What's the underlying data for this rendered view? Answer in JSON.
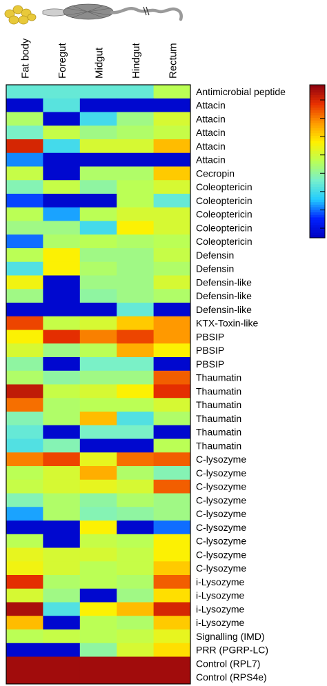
{
  "chart_data": {
    "type": "heatmap",
    "columns": [
      "Fat body",
      "Foregut",
      "Midgut",
      "Hindgut",
      "Rectum"
    ],
    "rows": [
      "Antimicrobial peptide",
      "Attacin",
      "Attacin",
      "Attacin",
      "Attacin",
      "Attacin",
      "Cecropin",
      "Coleoptericin",
      "Coleoptericin",
      "Coleoptericin",
      "Coleoptericin",
      "Coleoptericin",
      "Defensin",
      "Defensin",
      "Defensin-like",
      "Defensin-like",
      "Defensin-like",
      "KTX-Toxin-like",
      "PBSIP",
      "PBSIP",
      "PBSIP",
      "Thaumatin",
      "Thaumatin",
      "Thaumatin",
      "Thaumatin",
      "Thaumatin",
      "Thaumatin",
      "C-lysozyme",
      "C-lysozyme",
      "C-lysozyme",
      "C-lysozyme",
      "C-lysozyme",
      "C-lysozyme",
      "C-lysozyme",
      "C-lysozyme",
      "C-lysozyme",
      "i-Lysozyme",
      "i-Lysozyme",
      "i-Lysozyme",
      "i-Lysozyme",
      "Signalling (IMD)",
      "PRR (PGRP-LC)",
      "Control (RPL7)",
      "Control (RPS4e)"
    ],
    "values": [
      [
        0.35,
        0.35,
        0.35,
        0.35,
        0.5
      ],
      [
        0.03,
        0.33,
        0.03,
        0.03,
        0.03
      ],
      [
        0.48,
        0.03,
        0.3,
        0.45,
        0.55
      ],
      [
        0.38,
        0.52,
        0.45,
        0.48,
        0.52
      ],
      [
        0.9,
        0.3,
        0.55,
        0.55,
        0.7
      ],
      [
        0.2,
        0.03,
        0.03,
        0.03,
        0.03
      ],
      [
        0.52,
        0.03,
        0.48,
        0.48,
        0.68
      ],
      [
        0.4,
        0.52,
        0.42,
        0.5,
        0.55
      ],
      [
        0.15,
        0.03,
        0.03,
        0.5,
        0.35
      ],
      [
        0.5,
        0.22,
        0.5,
        0.55,
        0.55
      ],
      [
        0.45,
        0.45,
        0.3,
        0.62,
        0.55
      ],
      [
        0.18,
        0.48,
        0.5,
        0.48,
        0.5
      ],
      [
        0.5,
        0.62,
        0.45,
        0.45,
        0.52
      ],
      [
        0.32,
        0.62,
        0.48,
        0.45,
        0.48
      ],
      [
        0.6,
        0.03,
        0.45,
        0.45,
        0.55
      ],
      [
        0.45,
        0.03,
        0.42,
        0.45,
        0.48
      ],
      [
        0.03,
        0.03,
        0.03,
        0.35,
        0.03
      ],
      [
        0.85,
        0.52,
        0.55,
        0.68,
        0.75
      ],
      [
        0.62,
        0.88,
        0.78,
        0.85,
        0.75
      ],
      [
        0.55,
        0.45,
        0.5,
        0.72,
        0.62
      ],
      [
        0.42,
        0.03,
        0.38,
        0.38,
        0.03
      ],
      [
        0.48,
        0.42,
        0.45,
        0.45,
        0.82
      ],
      [
        0.93,
        0.52,
        0.55,
        0.62,
        0.88
      ],
      [
        0.8,
        0.48,
        0.5,
        0.5,
        0.55
      ],
      [
        0.4,
        0.48,
        0.7,
        0.32,
        0.48
      ],
      [
        0.35,
        0.03,
        0.38,
        0.38,
        0.03
      ],
      [
        0.32,
        0.4,
        0.03,
        0.03,
        0.5
      ],
      [
        0.78,
        0.85,
        0.58,
        0.8,
        0.82
      ],
      [
        0.5,
        0.55,
        0.72,
        0.48,
        0.4
      ],
      [
        0.52,
        0.55,
        0.58,
        0.55,
        0.82
      ],
      [
        0.4,
        0.48,
        0.42,
        0.48,
        0.45
      ],
      [
        0.22,
        0.48,
        0.4,
        0.42,
        0.45
      ],
      [
        0.03,
        0.03,
        0.62,
        0.03,
        0.18
      ],
      [
        0.5,
        0.03,
        0.52,
        0.5,
        0.62
      ],
      [
        0.58,
        0.55,
        0.55,
        0.52,
        0.62
      ],
      [
        0.6,
        0.55,
        0.5,
        0.52,
        0.68
      ],
      [
        0.88,
        0.48,
        0.5,
        0.48,
        0.82
      ],
      [
        0.55,
        0.45,
        0.03,
        0.45,
        0.65
      ],
      [
        0.96,
        0.32,
        0.62,
        0.7,
        0.9
      ],
      [
        0.7,
        0.03,
        0.5,
        0.48,
        0.68
      ],
      [
        0.5,
        0.52,
        0.5,
        0.52,
        0.58
      ],
      [
        0.03,
        0.03,
        0.42,
        0.55,
        0.65
      ],
      [
        0.97,
        0.97,
        0.97,
        0.97,
        0.97
      ],
      [
        0.97,
        0.97,
        0.97,
        0.97,
        0.97
      ]
    ],
    "value_range": [
      0,
      1
    ],
    "colormap": [
      "#0000c0",
      "#0022ff",
      "#22ccff",
      "#77f0cc",
      "#bbff55",
      "#fff000",
      "#ff9900",
      "#e83000",
      "#8b0010"
    ],
    "legend": "right",
    "legend_ticks": 8,
    "grid": false
  },
  "tissue_icon_colors": {
    "fat_body": "#e8c93a",
    "gut": "#9a9a9a"
  }
}
